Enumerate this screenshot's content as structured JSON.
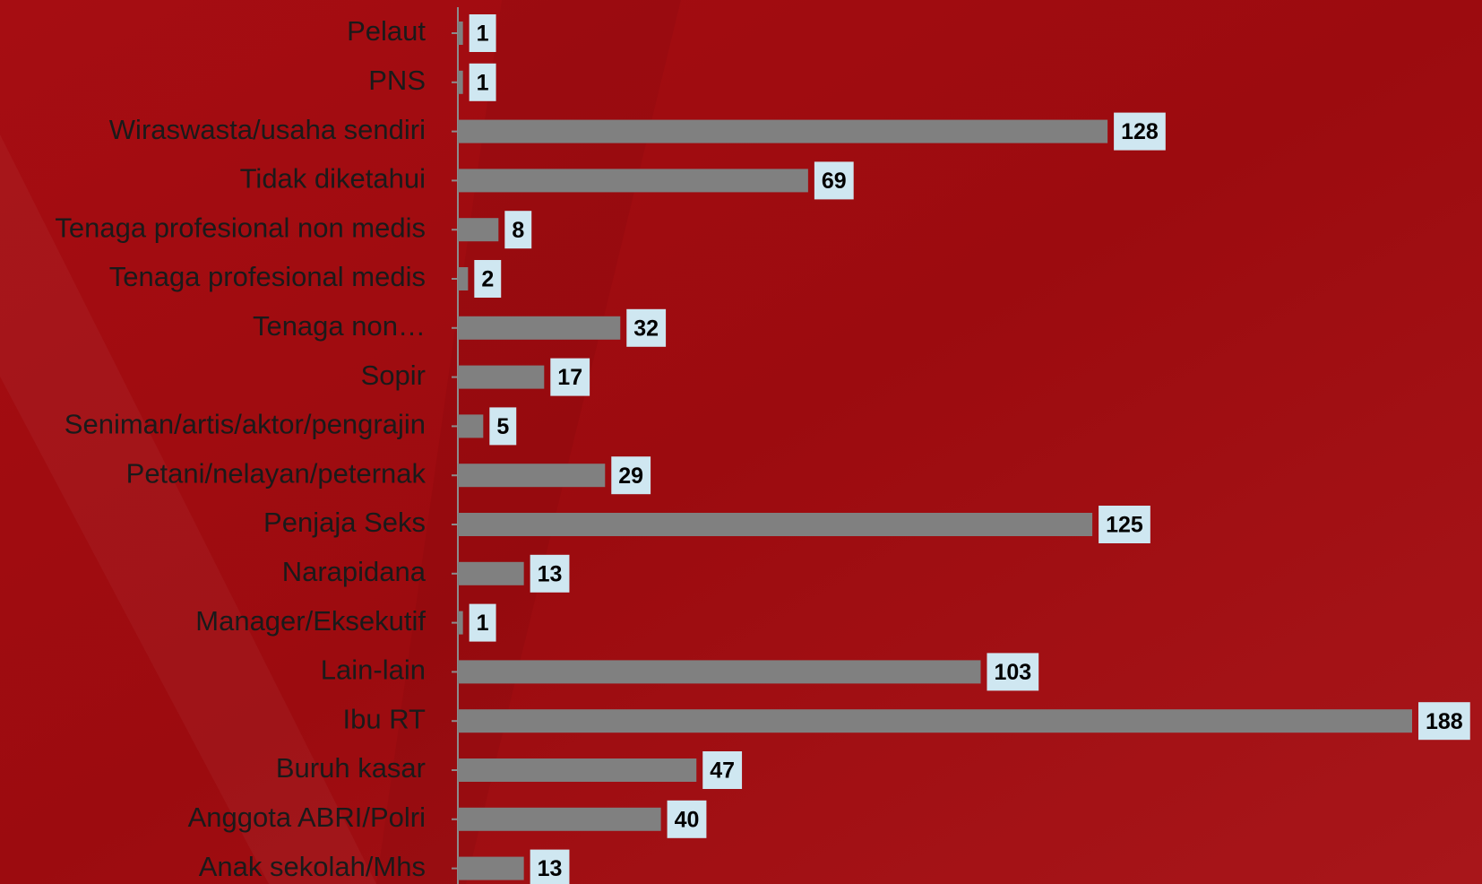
{
  "chart_data": {
    "type": "bar",
    "orientation": "horizontal",
    "categories": [
      "Pelaut",
      "PNS",
      "Wiraswasta/usaha sendiri",
      "Tidak diketahui",
      "Tenaga profesional non medis",
      "Tenaga profesional medis",
      "Tenaga non…",
      "Sopir",
      "Seniman/artis/aktor/pengrajin",
      "Petani/nelayan/peternak",
      "Penjaja Seks",
      "Narapidana",
      "Manager/Eksekutif",
      "Lain-lain",
      "Ibu RT",
      "Buruh kasar",
      "Anggota ABRI/Polri",
      "Anak sekolah/Mhs"
    ],
    "values": [
      1,
      1,
      128,
      69,
      8,
      2,
      32,
      17,
      5,
      29,
      125,
      13,
      1,
      103,
      188,
      47,
      40,
      13
    ],
    "color": "#808080"
  }
}
